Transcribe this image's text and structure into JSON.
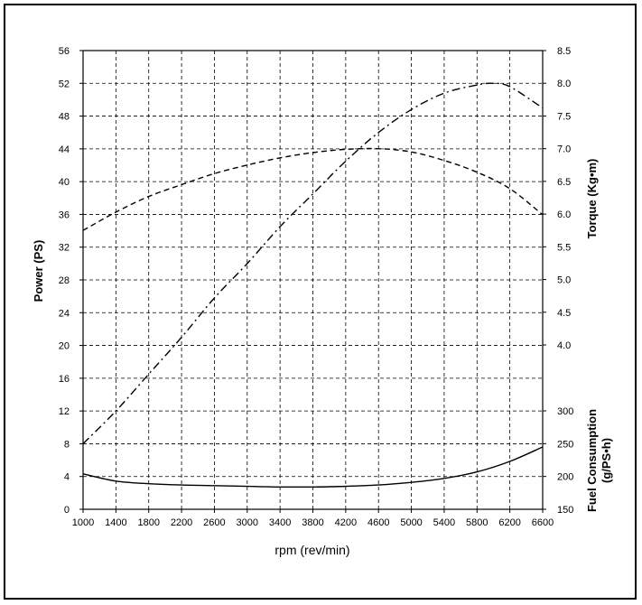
{
  "chart_data": {
    "type": "line",
    "title": "",
    "xlabel": "rpm (rev/min)",
    "ylabel_left": "Power (PS)",
    "ylabel_right_upper": "Torque (Kg•m)",
    "ylabel_right_lower": [
      "Fuel Consumption",
      "(g/PS•h)"
    ],
    "x_ticks": [
      "1000",
      "1400",
      "1800",
      "2200",
      "2600",
      "3000",
      "3400",
      "3800",
      "4200",
      "4600",
      "5000",
      "5400",
      "5800",
      "6200",
      "6600"
    ],
    "xlim": [
      1000,
      6600
    ],
    "y_left_ticks": [
      "0",
      "4",
      "8",
      "12",
      "16",
      "20",
      "24",
      "28",
      "32",
      "36",
      "40",
      "44",
      "48",
      "52",
      "56"
    ],
    "y_left_lim": [
      0,
      56
    ],
    "y_torque_ticks": [
      "4.0",
      "4.5",
      "5.0",
      "5.5",
      "6.0",
      "6.5",
      "7.0",
      "7.5",
      "8.0",
      "8.5"
    ],
    "y_torque_lim": [
      4.0,
      8.5
    ],
    "y_fuel_ticks": [
      "150",
      "200",
      "250",
      "300"
    ],
    "y_fuel_lim": [
      150,
      300
    ],
    "grid": true,
    "series": [
      {
        "axis": "left",
        "style": "dash-dot",
        "x": [
          1000,
          1400,
          1800,
          2200,
          2600,
          3000,
          3400,
          3800,
          4200,
          4600,
          5000,
          5400,
          5800,
          6000,
          6200,
          6600
        ],
        "values": [
          8.0,
          12.0,
          16.5,
          21.0,
          25.8,
          30.0,
          34.5,
          38.5,
          42.5,
          46.0,
          48.8,
          50.8,
          51.8,
          52.0,
          51.6,
          49.0
        ]
      },
      {
        "axis": "torque",
        "style": "dashed",
        "x": [
          1000,
          1400,
          1800,
          2200,
          2600,
          3000,
          3400,
          3800,
          4200,
          4600,
          5000,
          5400,
          5800,
          6200,
          6600
        ],
        "values": [
          5.75,
          6.03,
          6.27,
          6.45,
          6.62,
          6.75,
          6.86,
          6.94,
          6.99,
          7.0,
          6.95,
          6.82,
          6.64,
          6.39,
          5.99
        ]
      },
      {
        "axis": "fuel",
        "style": "solid",
        "x": [
          1000,
          1400,
          1800,
          2200,
          2600,
          3000,
          3400,
          3800,
          4200,
          4600,
          5000,
          5400,
          5800,
          6200,
          6600
        ],
        "values": [
          204,
          193,
          189,
          187,
          186,
          185,
          184,
          184,
          185,
          187,
          191,
          197,
          207,
          223,
          245
        ]
      }
    ]
  }
}
